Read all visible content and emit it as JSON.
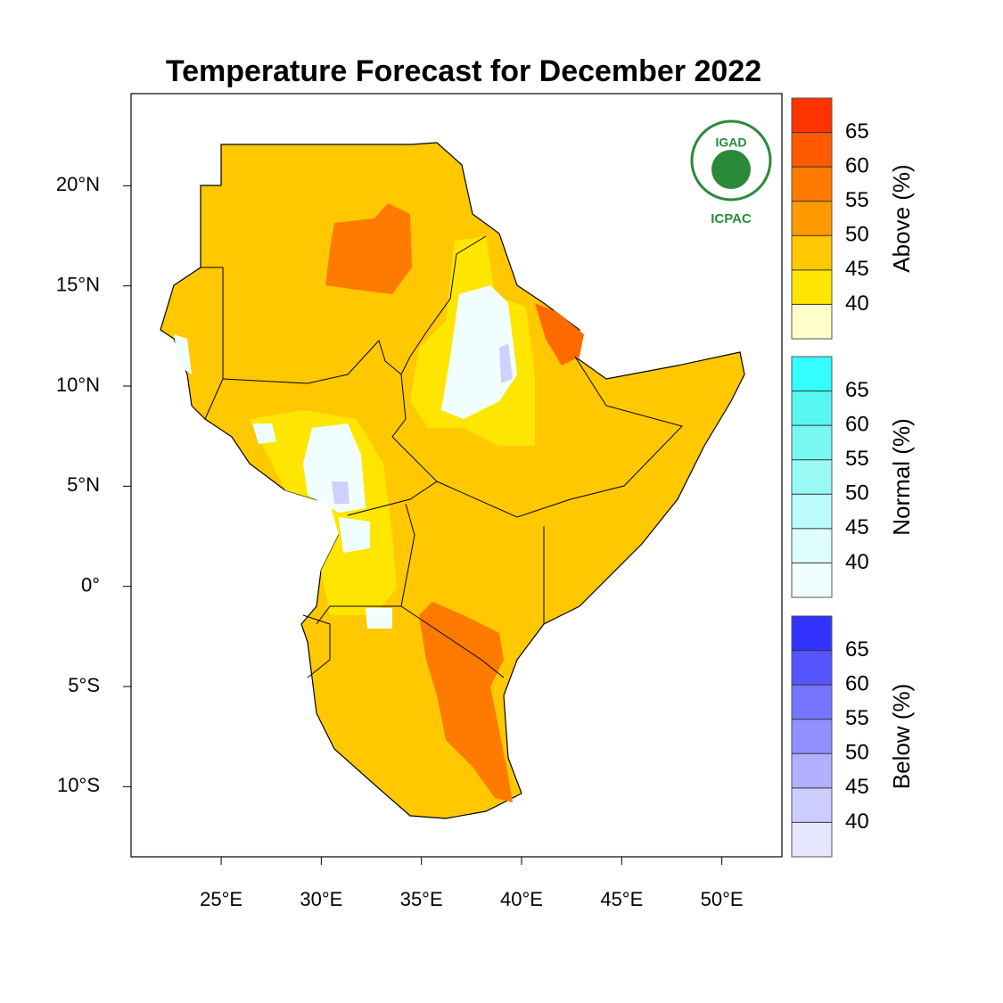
{
  "chart_data": {
    "type": "map",
    "title": "Temperature Forecast for December 2022",
    "xlim": [
      20.5,
      53
    ],
    "ylim": [
      -13.5,
      24.6
    ],
    "xticks": [
      {
        "value": 25,
        "label": "25°E"
      },
      {
        "value": 30,
        "label": "30°E"
      },
      {
        "value": 35,
        "label": "35°E"
      },
      {
        "value": 40,
        "label": "40°E"
      },
      {
        "value": 45,
        "label": "45°E"
      },
      {
        "value": 50,
        "label": "50°E"
      }
    ],
    "yticks": [
      {
        "value": 20,
        "label": "20°N"
      },
      {
        "value": 15,
        "label": "15°N"
      },
      {
        "value": 10,
        "label": "10°N"
      },
      {
        "value": 5,
        "label": "5°N"
      },
      {
        "value": 0,
        "label": "0°"
      },
      {
        "value": -5,
        "label": "5°S"
      },
      {
        "value": -10,
        "label": "10°S"
      }
    ],
    "logo": {
      "top": "IGAD",
      "bottom": "ICPAC"
    },
    "colorbars": [
      {
        "label": "Above (%)",
        "lim": [
          35,
          70
        ],
        "ticks": [
          40,
          45,
          50,
          55,
          60,
          65
        ],
        "colors": [
          "#ffffcc",
          "#ffe600",
          "#ffc800",
          "#ff9900",
          "#ff7a00",
          "#ff5a00",
          "#ff3300"
        ]
      },
      {
        "label": "Normal (%)",
        "lim": [
          35,
          70
        ],
        "ticks": [
          40,
          45,
          50,
          55,
          60,
          65
        ],
        "colors": [
          "#f0fffe",
          "#ddfefd",
          "#bbfcfa",
          "#99faf5",
          "#77f8f2",
          "#55f7f0",
          "#33ffff"
        ]
      },
      {
        "label": "Below (%)",
        "lim": [
          35,
          70
        ],
        "ticks": [
          40,
          45,
          50,
          55,
          60,
          65
        ],
        "colors": [
          "#e6e6ff",
          "#ccccff",
          "#b0b0ff",
          "#9090ff",
          "#7575ff",
          "#5555ff",
          "#3333ff"
        ]
      }
    ]
  }
}
